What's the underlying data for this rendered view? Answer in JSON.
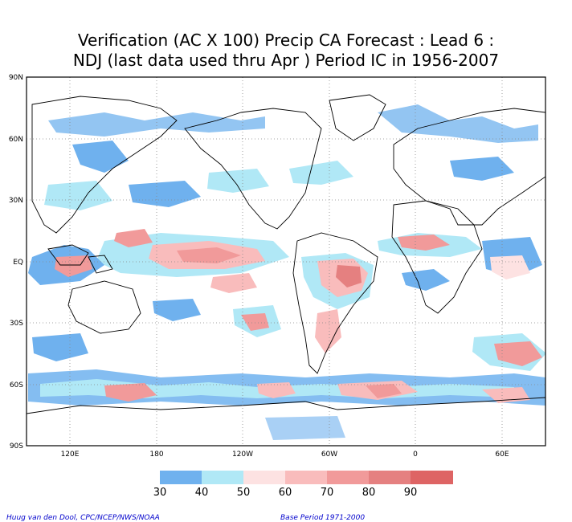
{
  "title_line1": "Verification (AC X 100) Precip CA Forecast : Lead 6 :",
  "title_line2": "NDJ (last data used thru Apr ) Period IC in 1956-2007",
  "lat_labels": [
    "90N",
    "60N",
    "30N",
    "EQ",
    "30S",
    "60S",
    "90S"
  ],
  "lon_labels": [
    "120E",
    "180",
    "120W",
    "60W",
    "0",
    "60E"
  ],
  "colorbar": {
    "ticks": [
      "30",
      "40",
      "50",
      "60",
      "70",
      "80",
      "90"
    ],
    "colors": [
      "#6fb1ee",
      "#b0e8f6",
      "#fde2e2",
      "#f9bcbc",
      "#f19a9a",
      "#e58080",
      "#de6464"
    ]
  },
  "credit_left": "Huug van den Dool, CPC/NCEP/NWS/NOAA",
  "credit_right": "Base Period 1971-2000"
}
